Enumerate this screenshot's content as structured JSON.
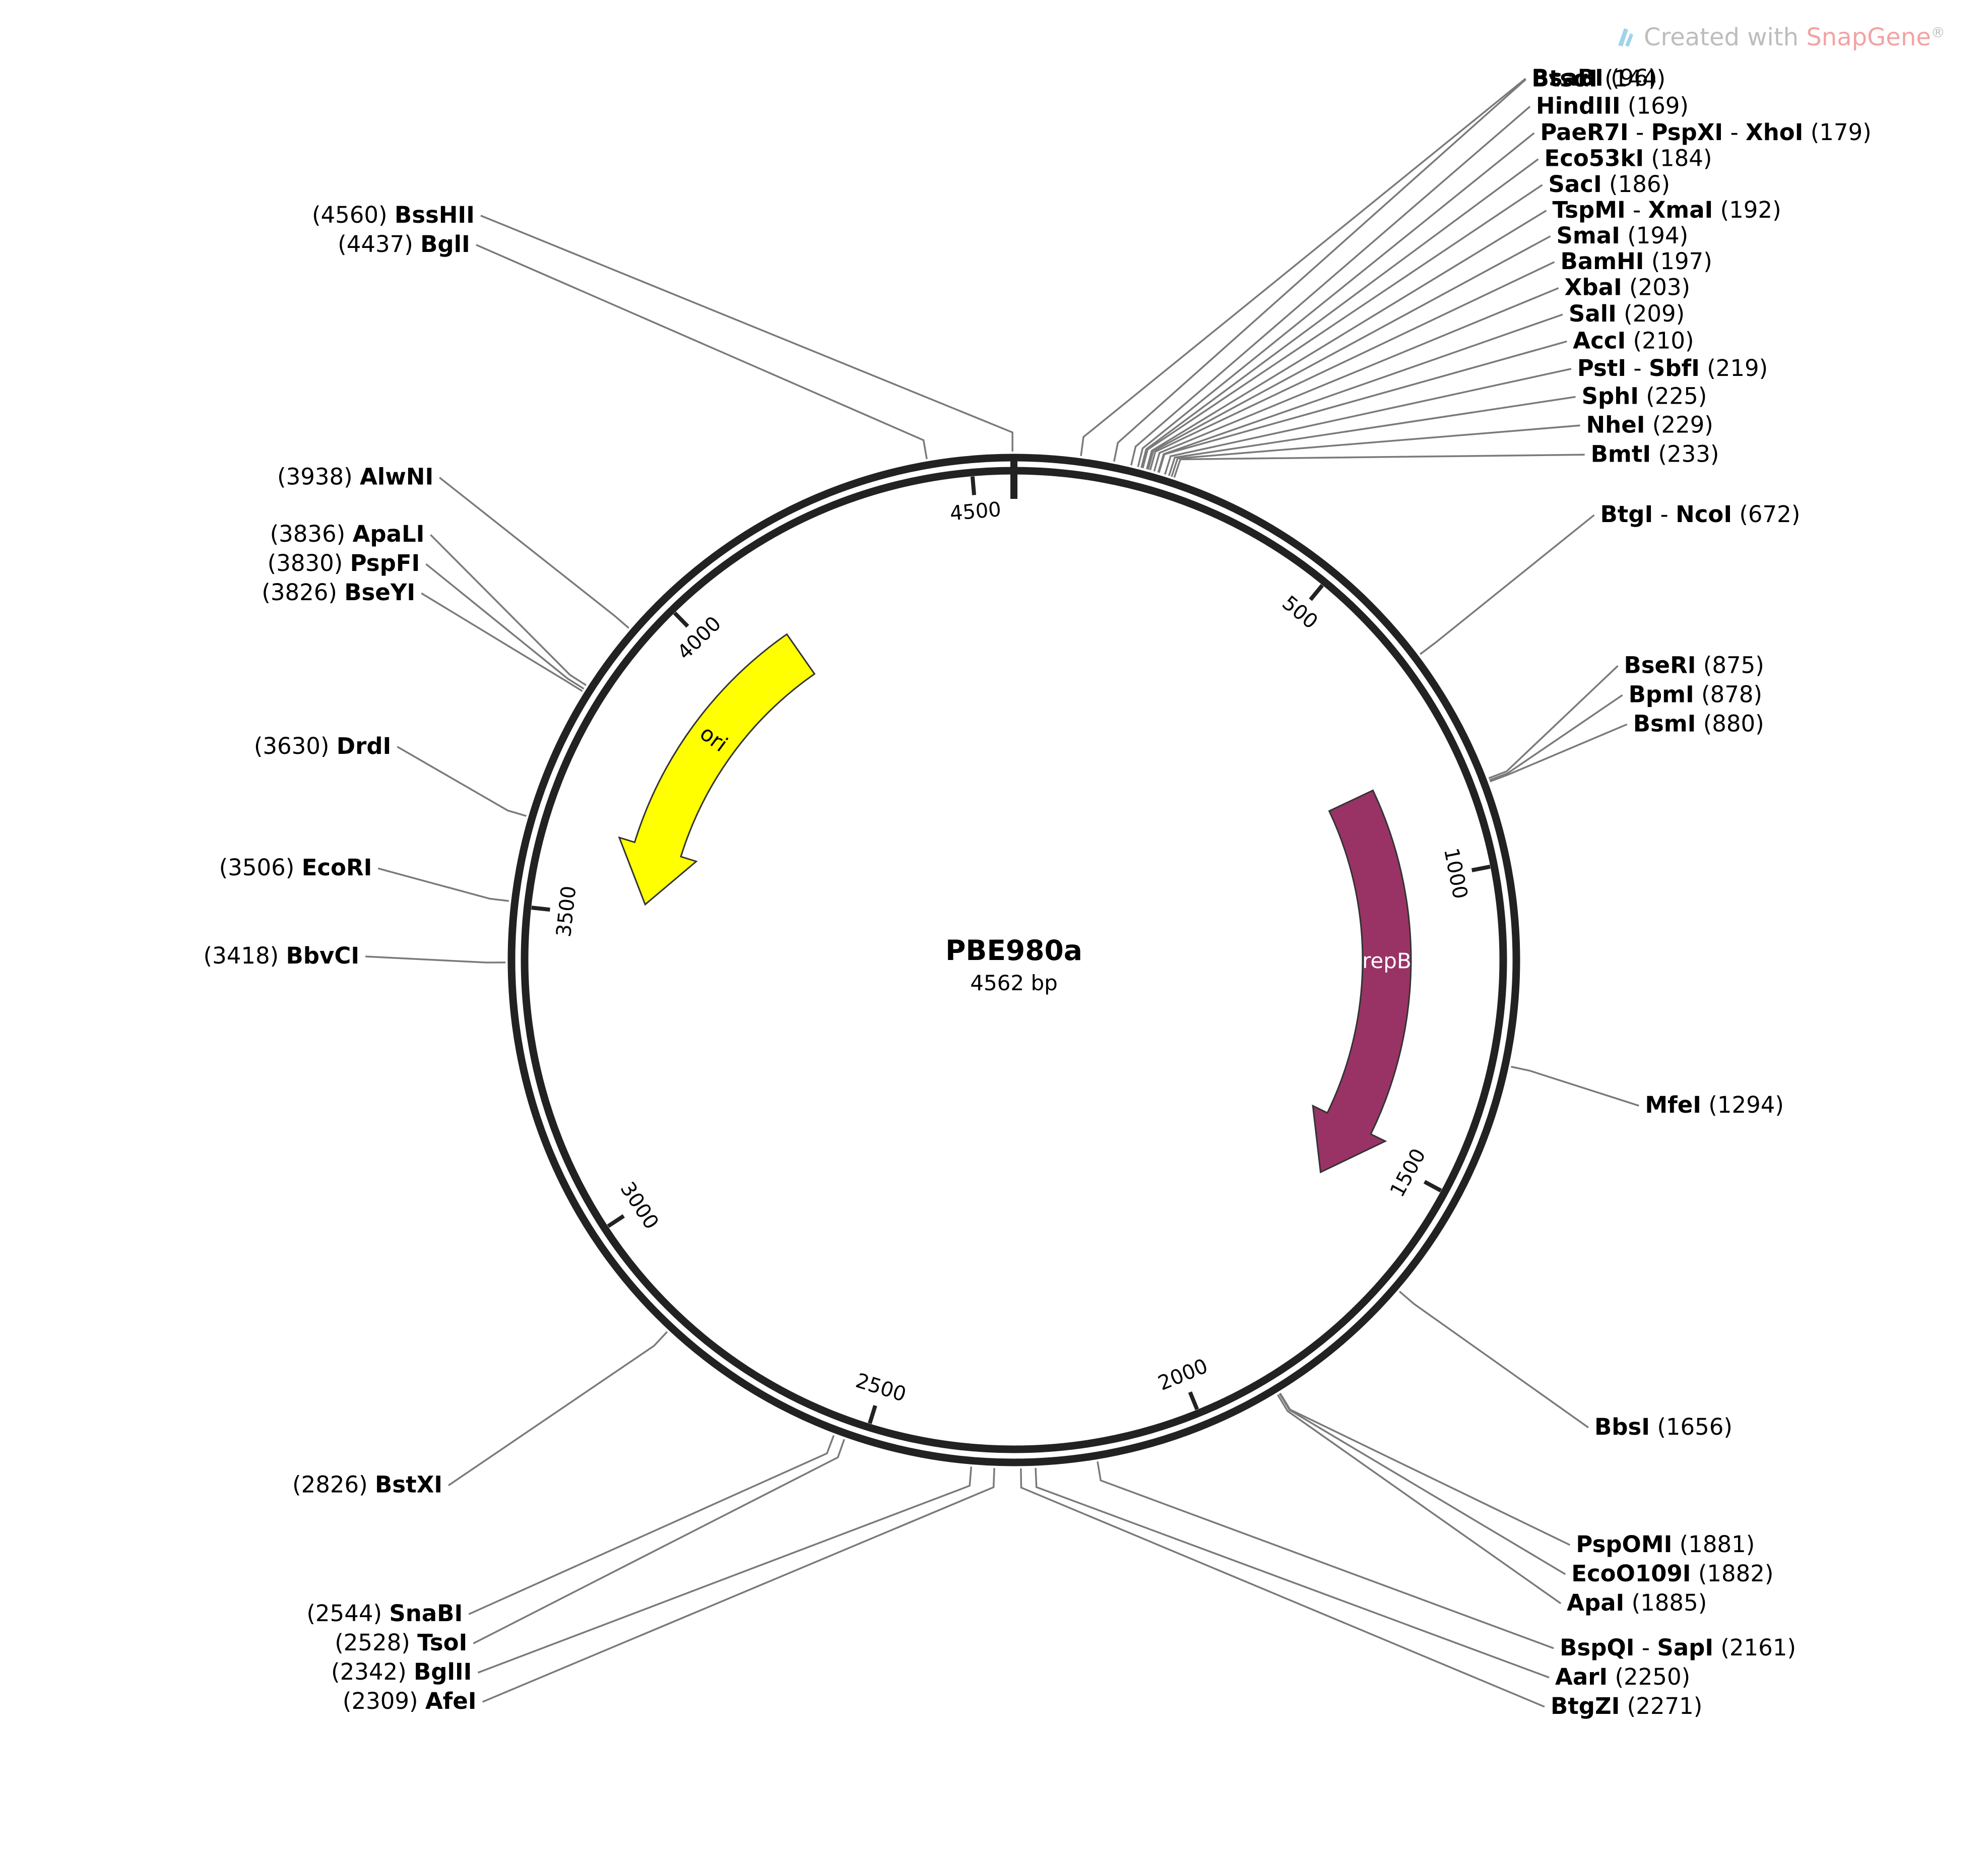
{
  "watermark": {
    "prefix": "Created with ",
    "brand": "SnapGene",
    "mark": "®",
    "prefix_color": "#bdbdbd",
    "brand_color": "#f2a3a3"
  },
  "plasmid": {
    "name": "PBE980a",
    "length_bp": 4562,
    "size_label": "4562 bp",
    "backbone_color": "#222222"
  },
  "ticks": [
    {
      "position": 500,
      "label": "500"
    },
    {
      "position": 1000,
      "label": "1000"
    },
    {
      "position": 1500,
      "label": "1500"
    },
    {
      "position": 2000,
      "label": "2000"
    },
    {
      "position": 2500,
      "label": "2500"
    },
    {
      "position": 3000,
      "label": "3000"
    },
    {
      "position": 3500,
      "label": "3500"
    },
    {
      "position": 4000,
      "label": "4000"
    },
    {
      "position": 4500,
      "label": "4500"
    }
  ],
  "features": [
    {
      "name": "repB",
      "start": 820,
      "end": 1580,
      "direction": "forward",
      "color": "#993366",
      "text_color": "#ffffff"
    },
    {
      "name": "ori",
      "start": 3530,
      "end": 4120,
      "direction": "reverse",
      "color": "#ffff00",
      "text_color": "#000000"
    }
  ],
  "sites": [
    {
      "enzymes": [
        "BsaBI"
      ],
      "position": 96
    },
    {
      "enzymes": [
        "BtsαI"
      ],
      "position": 144
    },
    {
      "enzymes": [
        "HindIII"
      ],
      "position": 169
    },
    {
      "enzymes": [
        "PaeR7I",
        "PspXI",
        "XhoI"
      ],
      "position": 179
    },
    {
      "enzymes": [
        "Eco53kI"
      ],
      "position": 184
    },
    {
      "enzymes": [
        "SacI"
      ],
      "position": 186
    },
    {
      "enzymes": [
        "TspMI",
        "XmaI"
      ],
      "position": 192
    },
    {
      "enzymes": [
        "SmaI"
      ],
      "position": 194
    },
    {
      "enzymes": [
        "BamHI"
      ],
      "position": 197
    },
    {
      "enzymes": [
        "XbaI"
      ],
      "position": 203
    },
    {
      "enzymes": [
        "SalI"
      ],
      "position": 209
    },
    {
      "enzymes": [
        "AccI"
      ],
      "position": 210
    },
    {
      "enzymes": [
        "PstI",
        "SbfI"
      ],
      "position": 219
    },
    {
      "enzymes": [
        "SphI"
      ],
      "position": 225
    },
    {
      "enzymes": [
        "NheI"
      ],
      "position": 229
    },
    {
      "enzymes": [
        "BmtI"
      ],
      "position": 233
    },
    {
      "enzymes": [
        "BtgI",
        "NcoI"
      ],
      "position": 672
    },
    {
      "enzymes": [
        "BseRI"
      ],
      "position": 875
    },
    {
      "enzymes": [
        "BpmI"
      ],
      "position": 878
    },
    {
      "enzymes": [
        "BsmI"
      ],
      "position": 880
    },
    {
      "enzymes": [
        "MfeI"
      ],
      "position": 1294
    },
    {
      "enzymes": [
        "BbsI"
      ],
      "position": 1656
    },
    {
      "enzymes": [
        "PspOMI"
      ],
      "position": 1881
    },
    {
      "enzymes": [
        "EcoO109I"
      ],
      "position": 1882
    },
    {
      "enzymes": [
        "ApaI"
      ],
      "position": 1885
    },
    {
      "enzymes": [
        "BspQI",
        "SapI"
      ],
      "position": 2161
    },
    {
      "enzymes": [
        "AarI"
      ],
      "position": 2250
    },
    {
      "enzymes": [
        "BtgZI"
      ],
      "position": 2271
    },
    {
      "enzymes": [
        "AfeI"
      ],
      "position": 2309
    },
    {
      "enzymes": [
        "BglII"
      ],
      "position": 2342
    },
    {
      "enzymes": [
        "TsoI"
      ],
      "position": 2528
    },
    {
      "enzymes": [
        "SnaBI"
      ],
      "position": 2544
    },
    {
      "enzymes": [
        "BstXI"
      ],
      "position": 2826
    },
    {
      "enzymes": [
        "BbvCI"
      ],
      "position": 3418
    },
    {
      "enzymes": [
        "EcoRI"
      ],
      "position": 3506
    },
    {
      "enzymes": [
        "DrdI"
      ],
      "position": 3630
    },
    {
      "enzymes": [
        "BseYI"
      ],
      "position": 3826
    },
    {
      "enzymes": [
        "PspFI"
      ],
      "position": 3830
    },
    {
      "enzymes": [
        "ApaLI"
      ],
      "position": 3836
    },
    {
      "enzymes": [
        "AlwNI"
      ],
      "position": 3938
    },
    {
      "enzymes": [
        "BglI"
      ],
      "position": 4437
    },
    {
      "enzymes": [
        "BssHII"
      ],
      "position": 4560
    }
  ]
}
